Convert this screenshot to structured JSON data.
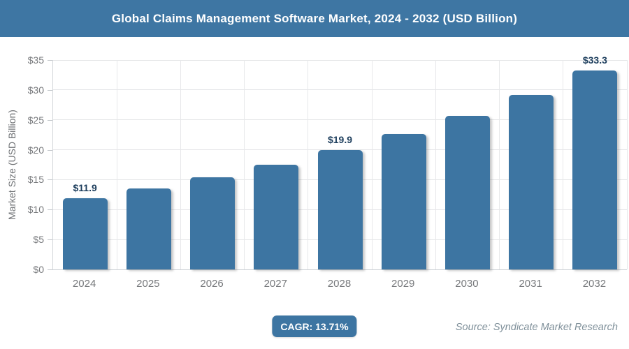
{
  "header": {
    "title": "Global Claims Management Software Market, 2024 - 2032 (USD Billion)",
    "bg_color": "#3e76a3",
    "text_color": "#ffffff"
  },
  "chart_data": {
    "type": "bar",
    "title": "Global Claims Management Software Market, 2024 - 2032 (USD Billion)",
    "categories": [
      "2024",
      "2025",
      "2026",
      "2027",
      "2028",
      "2029",
      "2030",
      "2031",
      "2032"
    ],
    "values": [
      11.9,
      13.5,
      15.4,
      17.5,
      19.9,
      22.6,
      25.7,
      29.2,
      33.3
    ],
    "data_labels": [
      "$11.9",
      null,
      null,
      null,
      "$19.9",
      null,
      null,
      null,
      "$33.3"
    ],
    "xlabel": "",
    "ylabel": "Market Size (USD Billion)",
    "ylim": [
      0,
      35
    ],
    "ytick_step": 5,
    "ytick_labels": [
      "$0",
      "$5",
      "$10",
      "$15",
      "$20",
      "$25",
      "$30",
      "$35"
    ],
    "grid": true,
    "legend": false,
    "bar_color": "#3d75a2",
    "value_label_color": "#1c3d5c",
    "axis_text_color": "#77797c"
  },
  "footer": {
    "cagr_label": "CAGR: 13.71%",
    "cagr_bg_color": "#3d75a2",
    "source": "Source: Syndicate Market Research"
  }
}
